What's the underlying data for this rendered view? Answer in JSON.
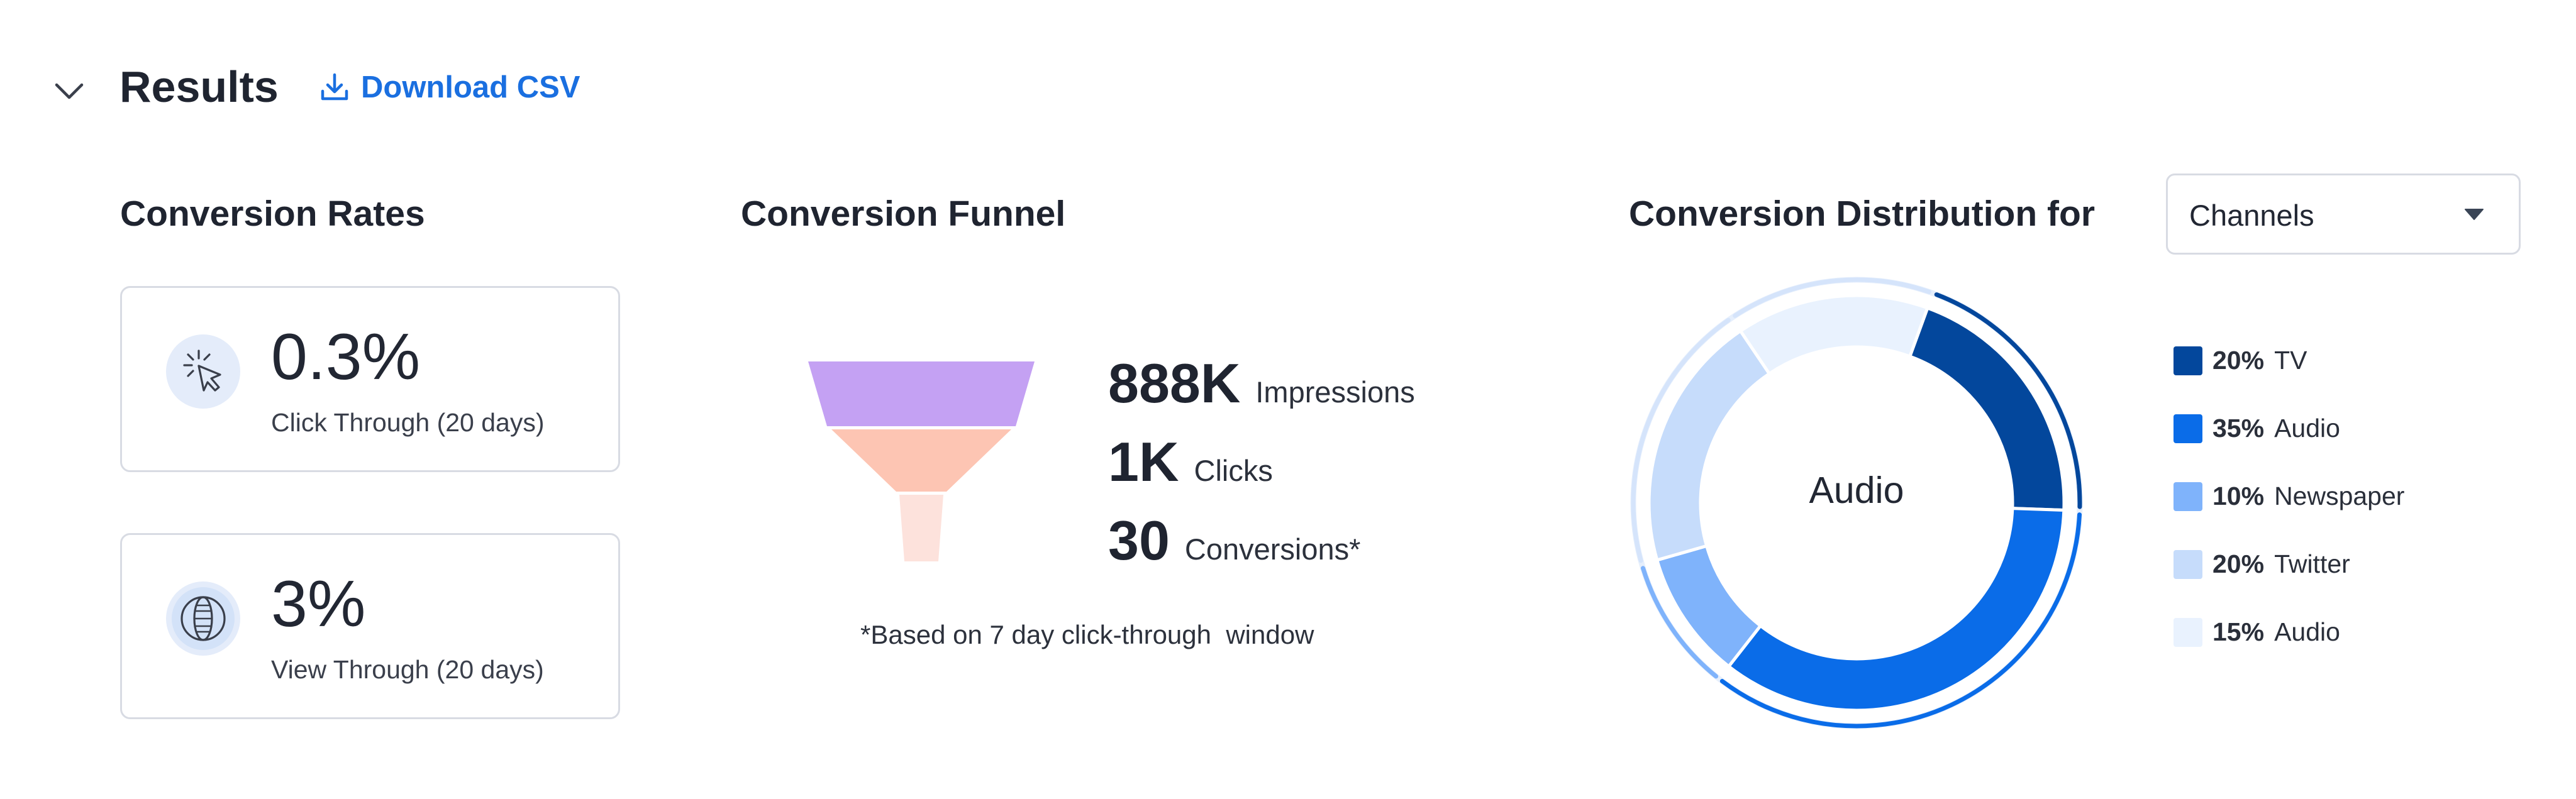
{
  "header": {
    "title": "Results",
    "download_label": "Download CSV"
  },
  "conversion_rates": {
    "title": "Conversion Rates",
    "cards": [
      {
        "value": "0.3%",
        "label": "Click Through (20 days)",
        "icon": "cursor-click-icon"
      },
      {
        "value": "3%",
        "label": "View Through (20 days)",
        "icon": "eye-globe-icon"
      }
    ]
  },
  "funnel": {
    "title": "Conversion Funnel",
    "stages": [
      {
        "value": "888K",
        "label": "Impressions",
        "color": "#c4a1f3"
      },
      {
        "value": "1K",
        "label": "Clicks",
        "color": "#fdc5b3"
      },
      {
        "value": "30",
        "label": "Conversions*",
        "color": "#fde2dc"
      }
    ],
    "note": "*Based on 7 day click-through  window"
  },
  "distribution": {
    "title": "Conversion Distribution for",
    "dropdown_value": "Channels",
    "center_label": "Audio",
    "chart_data": {
      "type": "pie",
      "categories": [
        "TV",
        "Audio",
        "Newspaper",
        "Twitter",
        "Audio"
      ],
      "values": [
        20,
        35,
        10,
        20,
        15
      ],
      "colors": [
        "#03479c",
        "#0a6ce8",
        "#7fb3fb",
        "#c6dcfb",
        "#e9f2fe"
      ],
      "legend_placement": "right",
      "start_angle_deg": 20
    },
    "legend": [
      {
        "pct": "20%",
        "name": "TV",
        "color": "#03479c"
      },
      {
        "pct": "35%",
        "name": "Audio",
        "color": "#0a6ce8"
      },
      {
        "pct": "10%",
        "name": "Newspaper",
        "color": "#7fb3fb"
      },
      {
        "pct": "20%",
        "name": "Twitter",
        "color": "#c6dcfb"
      },
      {
        "pct": "15%",
        "name": "Audio",
        "color": "#e9f2fe"
      }
    ]
  }
}
